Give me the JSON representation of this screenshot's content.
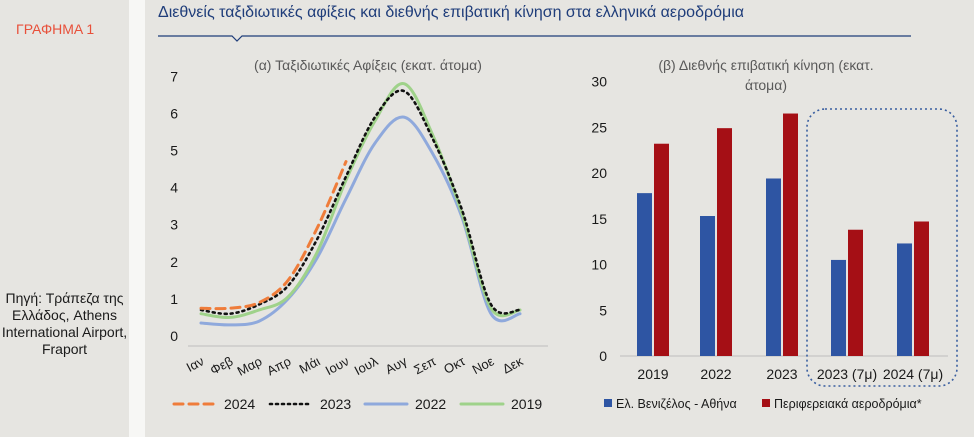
{
  "graph_label": "ΓΡΑΦΗΜΑ 1",
  "source": "Πηγή: Τράπεζα της Ελλάδος, Athens International Airport, Fraport",
  "title": "Διεθνείς ταξιδιωτικές αφίξεις και διεθνής επιβατική κίνηση στα ελληνικά αεροδρόμια",
  "colors": {
    "title": "#1f3d7a",
    "graph_label": "#e8503a",
    "s2024": "#ef7c3a",
    "s2023": "#111111",
    "s2022": "#8fa9dc",
    "s2019": "#9fd28a",
    "athens": "#2e55a3",
    "regional": "#a50f15",
    "dotted_box": "#3a5fa0"
  },
  "chart_data": [
    {
      "type": "line",
      "title": "(α) Ταξιδιωτικές Αφίξεις (εκατ. άτομα)",
      "categories": [
        "Ιαν",
        "Φεβ",
        "Μαρ",
        "Απρ",
        "Μάι",
        "Ιουν",
        "Ιουλ",
        "Αυγ",
        "Σεπ",
        "Οκτ",
        "Νοε",
        "Δεκ"
      ],
      "ylim": [
        0,
        7
      ],
      "yticks": [
        "0",
        "1",
        "2",
        "3",
        "4",
        "5",
        "6",
        "7"
      ],
      "grid": false,
      "legend": "bottom",
      "series": [
        {
          "name": "2024",
          "style": "dashed",
          "values": [
            0.75,
            0.75,
            0.9,
            1.5,
            2.9,
            4.7,
            null,
            null,
            null,
            null,
            null,
            null
          ]
        },
        {
          "name": "2023",
          "style": "dotted",
          "values": [
            0.7,
            0.6,
            0.85,
            1.35,
            2.6,
            4.3,
            5.9,
            6.6,
            5.3,
            3.4,
            0.85,
            0.7
          ]
        },
        {
          "name": "2022",
          "style": "solid",
          "values": [
            0.35,
            0.3,
            0.4,
            1.0,
            2.1,
            3.7,
            5.2,
            5.9,
            4.9,
            3.2,
            0.6,
            0.6
          ]
        },
        {
          "name": "2019",
          "style": "solid",
          "values": [
            0.6,
            0.5,
            0.7,
            1.05,
            2.25,
            4.2,
            5.8,
            6.8,
            5.4,
            3.3,
            0.75,
            0.7
          ]
        }
      ]
    },
    {
      "type": "bar",
      "title": "(β) Διεθνής επιβατική κίνηση (εκατ. άτομα)",
      "title_line1": "(β) Διεθνής επιβατική κίνηση (εκατ.",
      "title_line2": "άτομα)",
      "categories": [
        "2019",
        "2022",
        "2023",
        "2023 (7μ)",
        "2024 (7μ)"
      ],
      "ylim": [
        0,
        30
      ],
      "yticks": [
        "0",
        "5",
        "10",
        "15",
        "20",
        "25",
        "30"
      ],
      "grid": false,
      "legend": "bottom",
      "highlight": "last two categories enclosed in dotted box",
      "series": [
        {
          "name": "Ελ. Βενιζέλος - Αθήνα",
          "values": [
            17.8,
            15.3,
            19.4,
            10.5,
            12.3
          ]
        },
        {
          "name": "Περιφερειακά αεροδρόμια*",
          "values": [
            23.2,
            24.9,
            26.5,
            13.8,
            14.7
          ]
        }
      ]
    }
  ]
}
